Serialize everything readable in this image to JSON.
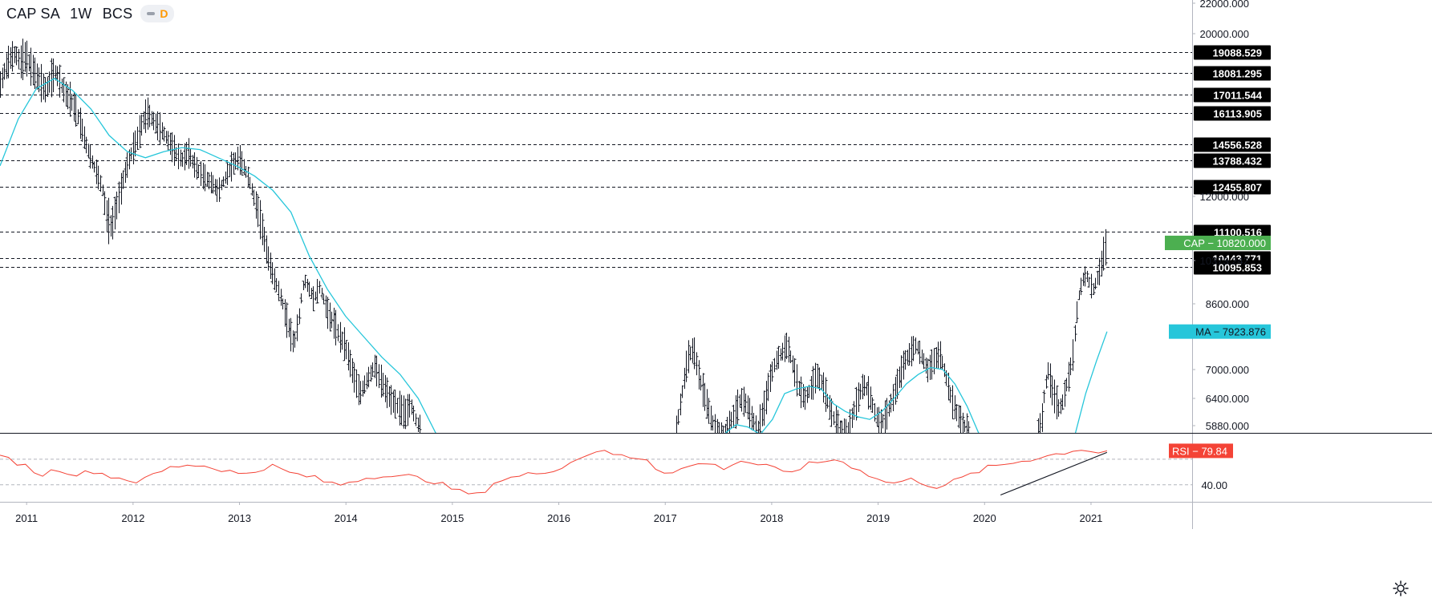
{
  "header": {
    "symbol": "CAP SA",
    "interval": "1W",
    "exchange": "BCS",
    "badge": "D"
  },
  "colors": {
    "ma": "#26c6da",
    "rsi": "#f44336",
    "last_price": "#4caf50",
    "price_bar": "#131722",
    "level_tag": "#000000"
  },
  "chart_data": [
    {
      "type": "ohlc",
      "name": "CAP",
      "ylim": [
        5600,
        22000
      ],
      "y_tick_labels": [
        "22000.000",
        "20000.000",
        "12000.000",
        "10373.242",
        "8600.000",
        "7000.000",
        "6400.000",
        "5880.000"
      ],
      "x_tick_labels": [
        "2011",
        "2012",
        "2013",
        "2014",
        "2015",
        "2016",
        "2017",
        "2018",
        "2019",
        "2020",
        "2021"
      ],
      "horizontal_levels": [
        "19088.529",
        "18081.295",
        "17011.544",
        "16113.905",
        "14556.528",
        "13788.432",
        "12455.807",
        "11100.516",
        "10443.771",
        "10095.853"
      ],
      "last_price": {
        "label": "CAP",
        "value": "10820.000"
      },
      "moving_average": {
        "label": "MA",
        "value": "7923.876"
      },
      "segments": [
        {
          "start": 2010.75,
          "end": 2014.7,
          "values": [
            17500,
            18300,
            18800,
            19000,
            18600,
            18900,
            18400,
            18000,
            17600,
            17200,
            17800,
            18100,
            17500,
            17000,
            16700,
            16200,
            15400,
            14500,
            13800,
            13200,
            12500,
            11500,
            11200,
            11800,
            12600,
            13500,
            14200,
            14800,
            15600,
            16100,
            15800,
            15500,
            15200,
            14800,
            14400,
            14000,
            13800,
            14200,
            13700,
            13300,
            13000,
            12800,
            12600,
            12300,
            12700,
            13200,
            13600,
            13900,
            13500,
            12900,
            12100,
            11600,
            11000,
            10300,
            9700,
            9100,
            8500,
            8000,
            7600,
            8300,
            9600,
            9200,
            8800,
            9300,
            8700,
            8300,
            8100,
            7800,
            7600,
            7200,
            6800,
            6500,
            6700,
            6900,
            7100,
            6800,
            6600,
            6400,
            6300,
            6200,
            6100,
            6300,
            6000,
            5750
          ]
        },
        {
          "start": 2017.1,
          "end": 2019.85,
          "values": [
            5800,
            6500,
            7300,
            7500,
            6800,
            6400,
            6000,
            5750,
            5700,
            5900,
            6100,
            6400,
            6300,
            6000,
            5850,
            6200,
            6800,
            7200,
            7400,
            7600,
            7100,
            6600,
            6400,
            6600,
            6900,
            6700,
            6300,
            6000,
            5800,
            5700,
            6000,
            6400,
            6700,
            6500,
            6100,
            5900,
            6100,
            6400,
            6800,
            7200,
            7400,
            7600,
            7300,
            7000,
            7200,
            7400,
            6900,
            6400,
            6100,
            5900,
            5800
          ]
        },
        {
          "start": 2020.5,
          "end": 2021.15,
          "values": [
            5750,
            5900,
            6600,
            7000,
            6600,
            6400,
            6200,
            6300,
            6600,
            6900,
            7300,
            8200,
            9100,
            9600,
            9800,
            9400,
            9200,
            9600,
            10000,
            10500,
            10820
          ]
        }
      ],
      "ma_segments": [
        {
          "start": 2010.75,
          "end": 2014.85,
          "values": [
            13500,
            15800,
            17300,
            17800,
            17200,
            16300,
            15000,
            14200,
            13900,
            14200,
            14400,
            14300,
            13900,
            13500,
            13000,
            12300,
            11600,
            10500,
            9200,
            8300,
            7800,
            7300,
            6900,
            6400,
            5700
          ]
        },
        {
          "start": 2017.55,
          "end": 2019.95,
          "values": [
            5700,
            5900,
            5850,
            5700,
            6000,
            6500,
            6600,
            6650,
            6600,
            6300,
            6150,
            6050,
            6000,
            6150,
            6400,
            6700,
            6900,
            7050,
            7000,
            6700,
            6250,
            5700
          ]
        },
        {
          "start": 2020.85,
          "end": 2021.15,
          "values": [
            5700,
            6500,
            7200,
            7923.876
          ]
        }
      ]
    },
    {
      "type": "line",
      "name": "RSI",
      "ylim": [
        20,
        100
      ],
      "y_tick_labels": [
        "40.00"
      ],
      "last": {
        "label": "RSI",
        "value": "79.84"
      },
      "x_start": 2010.75,
      "x_end": 2021.15,
      "values": [
        72,
        70,
        66,
        62,
        56,
        52,
        56,
        58,
        55,
        52,
        54,
        56,
        53,
        50,
        48,
        46,
        44,
        46,
        52,
        56,
        60,
        62,
        64,
        63,
        62,
        60,
        58,
        56,
        52,
        54,
        56,
        60,
        62,
        58,
        54,
        52,
        50,
        48,
        44,
        42,
        40,
        44,
        46,
        48,
        50,
        52,
        50,
        49,
        50,
        48,
        46,
        44,
        40,
        36,
        32,
        30,
        28,
        34,
        42,
        46,
        48,
        50,
        52,
        54,
        56,
        58,
        60,
        66,
        72,
        76,
        80,
        78,
        76,
        74,
        72,
        72,
        70,
        60,
        56,
        54,
        58,
        62,
        64,
        66,
        62,
        60,
        64,
        68,
        66,
        64,
        62,
        58,
        54,
        56,
        60,
        64,
        66,
        68,
        70,
        66,
        62,
        58,
        52,
        46,
        44,
        42,
        44,
        46,
        44,
        40,
        38,
        40,
        44,
        48,
        52,
        56,
        60,
        62,
        64,
        66,
        68,
        70,
        72,
        74,
        76,
        78,
        80,
        82,
        80,
        78,
        79.84
      ]
    }
  ]
}
